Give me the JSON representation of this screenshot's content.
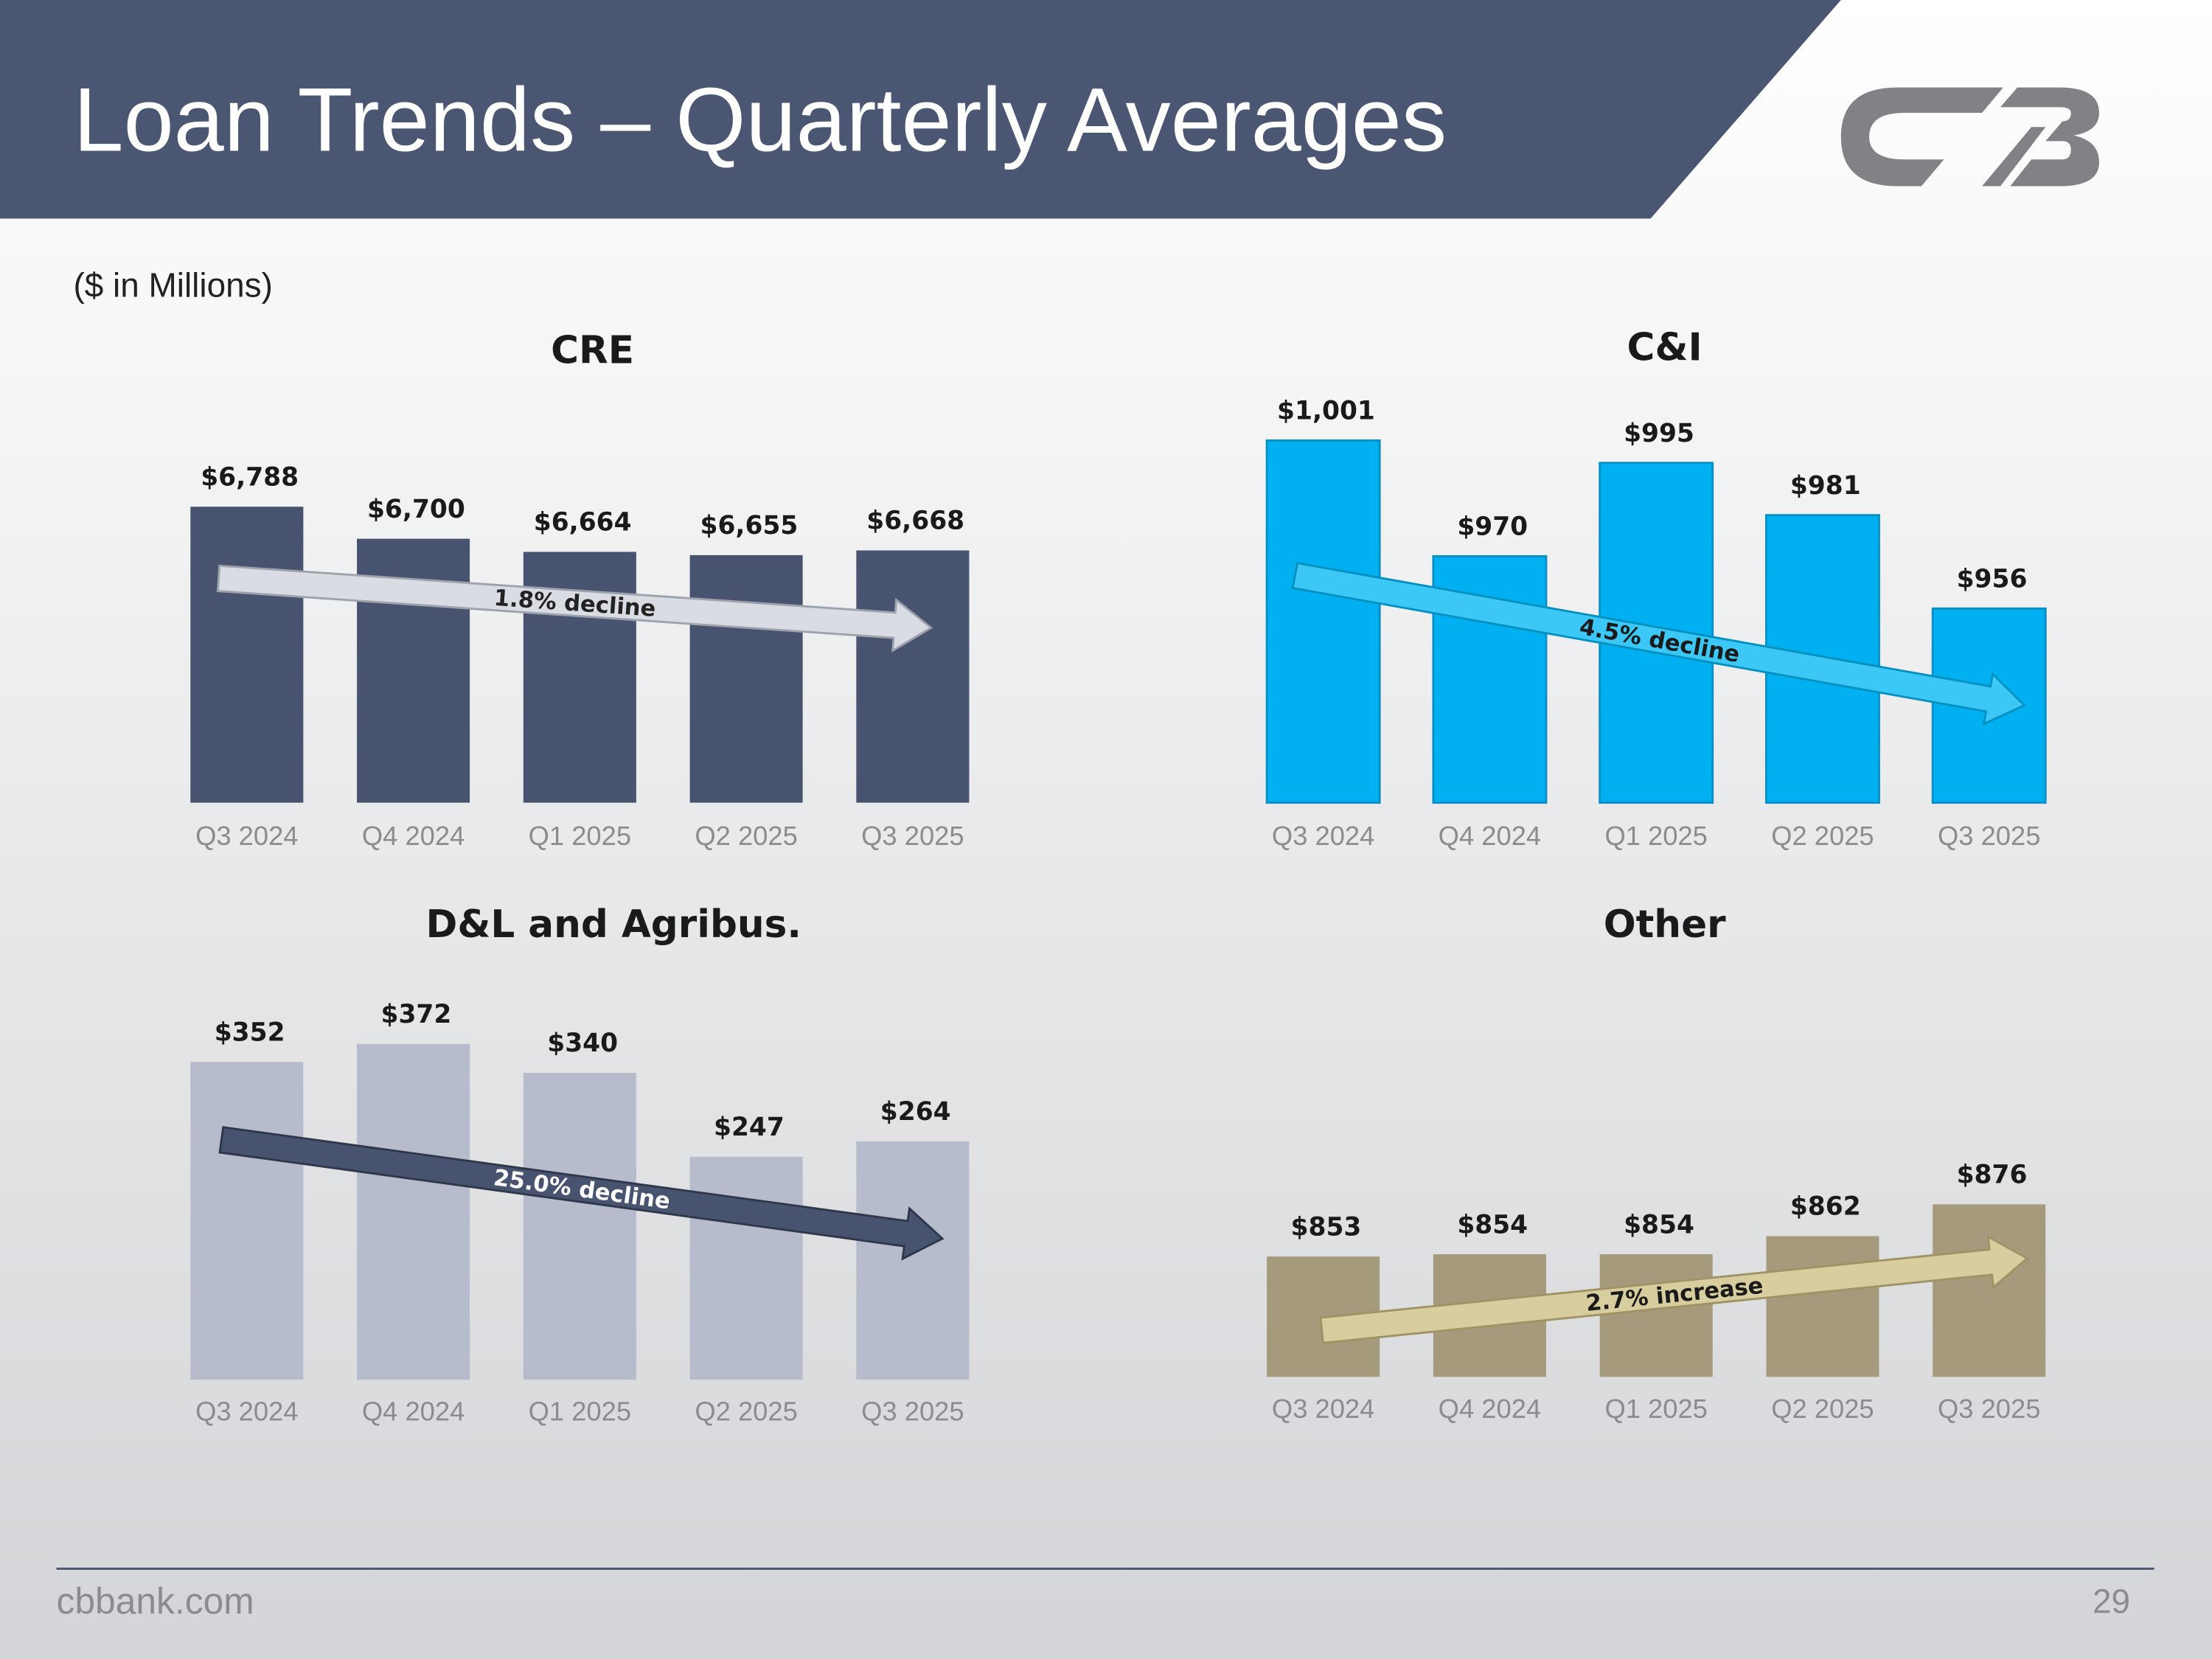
{
  "title": "Loan Trends – Quarterly Averages",
  "subtitle": "($ in Millions)",
  "footer": "cbbank.com",
  "page_number": 29,
  "chart_data": [
    {
      "type": "bar",
      "title": "CRE",
      "categories": [
        "Q3 2024",
        "Q4 2024",
        "Q1 2025",
        "Q2 2025",
        "Q3 2025"
      ],
      "values": [
        6788,
        6700,
        6664,
        6655,
        6668
      ],
      "value_labels": [
        "$6,788",
        "$6,700",
        "$6,664",
        "$6,655",
        "$6,668"
      ],
      "color": "#48546f",
      "ylim": [
        5975,
        6905
      ],
      "annotation": "1.8% decline"
    },
    {
      "type": "bar",
      "title": "C&I",
      "categories": [
        "Q3 2024",
        "Q4 2024",
        "Q1 2025",
        "Q2 2025",
        "Q3 2025"
      ],
      "values": [
        1001,
        970,
        995,
        981,
        956
      ],
      "value_labels": [
        "$1,001",
        "$970",
        "$995",
        "$981",
        "$956"
      ],
      "color": "#00b0f0",
      "ylim": [
        904,
        1006
      ],
      "annotation": "4.5% decline"
    },
    {
      "type": "bar",
      "title": "D&L and Agribus.",
      "categories": [
        "Q3 2024",
        "Q4 2024",
        "Q1 2025",
        "Q2 2025",
        "Q3 2025"
      ],
      "values": [
        352,
        372,
        340,
        247,
        264
      ],
      "value_labels": [
        "$352",
        "$372",
        "$340",
        "$247",
        "$264"
      ],
      "color": "#b7bccd",
      "ylim": [
        0,
        422
      ],
      "annotation": "25.0% decline"
    },
    {
      "type": "bar",
      "title": "Other",
      "categories": [
        "Q3 2024",
        "Q4 2024",
        "Q1 2025",
        "Q2 2025",
        "Q3 2025"
      ],
      "values": [
        853,
        854,
        854,
        862,
        876
      ],
      "value_labels": [
        "$853",
        "$854",
        "$854",
        "$862",
        "$876"
      ],
      "color": "#a69a7d",
      "ylim": [
        800,
        887
      ],
      "annotation": "2.7% increase"
    }
  ]
}
